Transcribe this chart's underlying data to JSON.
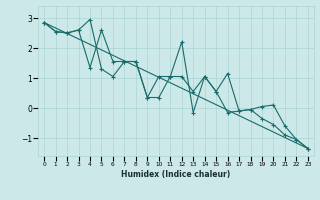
{
  "xlabel": "Humidex (Indice chaleur)",
  "bg_color": "#cce8e8",
  "line_color": "#1a6b6b",
  "grid_color": "#aad4d4",
  "xlim": [
    -0.5,
    23.5
  ],
  "ylim": [
    -1.6,
    3.4
  ],
  "yticks": [
    -1,
    0,
    1,
    2,
    3
  ],
  "xticks": [
    0,
    1,
    2,
    3,
    4,
    5,
    6,
    7,
    8,
    9,
    10,
    11,
    12,
    13,
    14,
    15,
    16,
    17,
    18,
    19,
    20,
    21,
    22,
    23
  ],
  "line1_x": [
    0,
    1,
    2,
    3,
    4,
    5,
    6,
    7,
    8,
    9,
    10,
    11,
    12,
    13,
    14,
    15,
    16,
    17,
    18,
    19,
    20,
    21,
    22,
    23
  ],
  "line1_y": [
    2.85,
    2.55,
    2.5,
    2.6,
    2.95,
    1.3,
    1.05,
    1.55,
    1.55,
    0.35,
    0.35,
    1.05,
    2.2,
    -0.15,
    1.05,
    0.55,
    1.15,
    -0.1,
    -0.05,
    0.05,
    0.1,
    -0.6,
    -1.05,
    -1.35
  ],
  "line2_x": [
    0,
    1,
    2,
    3,
    4,
    5,
    6,
    7,
    8,
    9,
    10,
    11,
    12,
    13,
    14,
    15,
    16,
    17,
    18,
    19,
    20,
    21,
    22,
    23
  ],
  "line2_y": [
    2.85,
    2.55,
    2.5,
    2.6,
    1.35,
    2.6,
    1.55,
    1.55,
    1.55,
    0.35,
    1.05,
    1.05,
    1.05,
    0.55,
    1.05,
    0.55,
    -0.15,
    -0.1,
    -0.05,
    -0.35,
    -0.55,
    -0.9,
    -1.05,
    -1.35
  ],
  "line3_x": [
    0,
    23
  ],
  "line3_y": [
    2.85,
    -1.35
  ]
}
